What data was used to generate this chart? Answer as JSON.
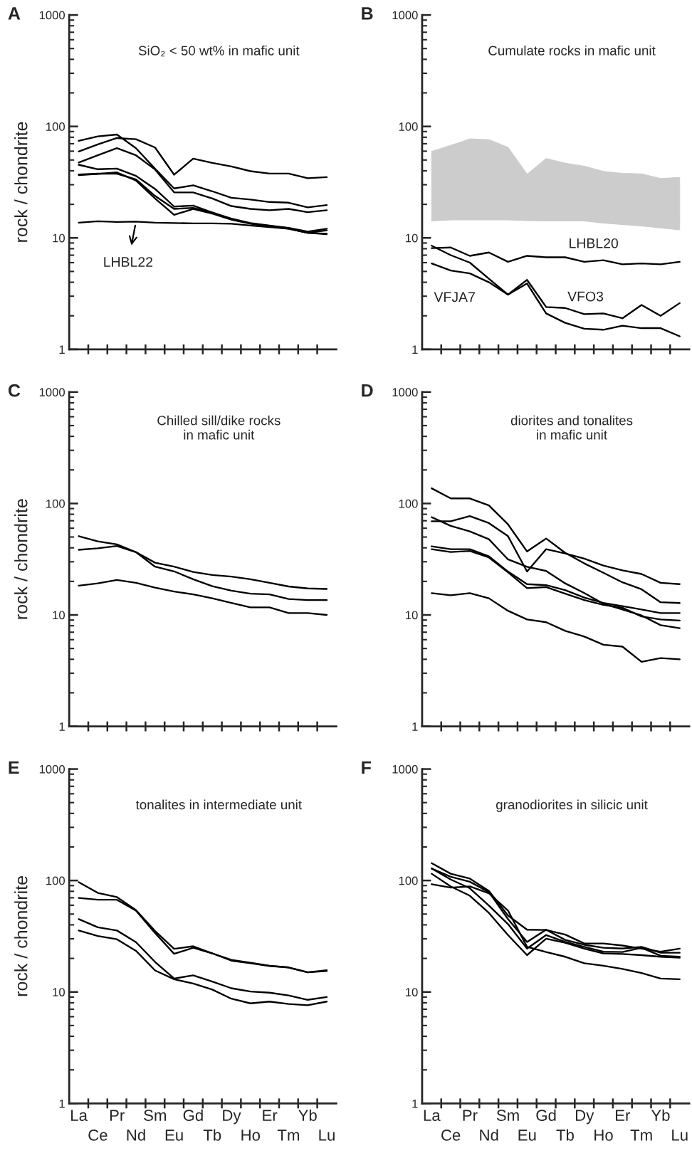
{
  "chart_data": [
    {
      "type": "line",
      "title": "A",
      "subtitle": "SiO₂ < 50 wt% in mafic unit",
      "ylabel": "rock / chondrite",
      "log": true,
      "ylim": [
        1,
        1000
      ],
      "yticks": [
        1,
        10,
        100,
        1000
      ],
      "tick_labels": "y",
      "categories": [
        null,
        null,
        null,
        null,
        null,
        null,
        null,
        null,
        null,
        null,
        null,
        null,
        null,
        null
      ],
      "series": [
        {
          "color": "#000000",
          "values": [
            59.6,
            69,
            78.7,
            76.8,
            64.7,
            36.9,
            51.4,
            47.1,
            43.8,
            39.7,
            37.8,
            37.8,
            34.3,
            35.1
          ]
        },
        {
          "color": "#000000",
          "values": [
            74.2,
            81.5,
            84.7,
            63.8,
            41.7,
            27.8,
            29.6,
            26.2,
            22.9,
            22.1,
            21.0,
            20.7,
            18.8,
            19.7
          ]
        },
        {
          "color": "#000000",
          "values": [
            47.5,
            55.1,
            63.8,
            55.1,
            41.1,
            25.6,
            25.6,
            22.6,
            19.3,
            18.2,
            17.7,
            18.2,
            17.0,
            17.7
          ]
        },
        {
          "color": "#000000",
          "values": [
            45.3,
            41.3,
            41.9,
            36.0,
            27.5,
            19.1,
            19.5,
            16.9,
            14.9,
            13.6,
            12.9,
            12.3,
            11.4,
            12.1
          ]
        },
        {
          "color": "#000000",
          "values": [
            36.6,
            37.5,
            38.7,
            32.7,
            22.6,
            16.1,
            18.2,
            16.5,
            14.6,
            13.4,
            12.7,
            12.1,
            11.1,
            10.9
          ]
        },
        {
          "color": "#000000",
          "values": [
            37.0,
            37.7,
            37.7,
            33.5,
            23.8,
            18.2,
            18.6,
            16.9,
            14.7,
            13.5,
            12.8,
            12.2,
            11.1,
            11.7
          ]
        },
        {
          "name": "LHBL22",
          "color": "#000000",
          "values": [
            13.7,
            14.1,
            13.9,
            14.0,
            13.7,
            13.6,
            13.5,
            13.5,
            13.4,
            12.9,
            12.5,
            12.1,
            11.1,
            10.8
          ]
        }
      ]
    },
    {
      "type": "line",
      "title": "B",
      "subtitle": "Cumulate rocks in mafic unit",
      "log": true,
      "ylim": [
        1,
        1000
      ],
      "yticks": [
        1,
        10,
        100,
        1000
      ],
      "tick_labels": "y",
      "categories": [
        null,
        null,
        null,
        null,
        null,
        null,
        null,
        null,
        null,
        null,
        null,
        null,
        null,
        null
      ],
      "series": [
        {
          "type": "area",
          "color": "#cccccc",
          "values": [
            null,
            null,
            null,
            null,
            null,
            null,
            null,
            null,
            null,
            null,
            null,
            null,
            null,
            null
          ],
          "upper": [
            59.7,
            67.5,
            77.3,
            76.1,
            64.9,
            37.2,
            51.5,
            46.8,
            43.9,
            39.5,
            37.9,
            37.6,
            34.1,
            34.9
          ],
          "lower": [
            14.2,
            14.5,
            14.5,
            14.5,
            14.5,
            14.3,
            14.2,
            14.2,
            14.2,
            13.6,
            13.2,
            12.8,
            12.3,
            11.8
          ]
        },
        {
          "name": "LHBL20",
          "color": "#000000",
          "values": [
            8.1,
            8.2,
            6.9,
            7.4,
            6.1,
            6.9,
            6.7,
            6.7,
            6.1,
            6.3,
            5.8,
            5.9,
            5.8,
            6.1
          ]
        },
        {
          "name": "VFO3",
          "color": "#000000",
          "values": [
            8.5,
            7.0,
            6.0,
            4.3,
            3.1,
            4.2,
            2.4,
            2.35,
            2.07,
            2.1,
            1.9,
            2.5,
            2.0,
            2.6
          ]
        },
        {
          "name": "VFJA7",
          "color": "#000000",
          "values": [
            5.9,
            5.1,
            4.8,
            4.0,
            3.1,
            3.9,
            2.1,
            1.73,
            1.53,
            1.5,
            1.63,
            1.55,
            1.55,
            1.31
          ]
        }
      ]
    },
    {
      "type": "line",
      "title": "C",
      "subtitle": "Chilled sill/dike rocks\nin mafic unit",
      "ylabel": "rock / chondrite",
      "log": true,
      "ylim": [
        1,
        1000
      ],
      "yticks": [
        1,
        10,
        100,
        1000
      ],
      "tick_labels": "y",
      "categories": [
        null,
        null,
        null,
        null,
        null,
        null,
        null,
        null,
        null,
        null,
        null,
        null,
        null,
        null
      ],
      "series": [
        {
          "color": "#000000",
          "values": [
            50.9,
            45.7,
            43.0,
            36.6,
            27.1,
            24.6,
            20.9,
            18.1,
            16.5,
            15.5,
            15.3,
            13.9,
            13.6,
            13.6
          ]
        },
        {
          "color": "#000000",
          "values": [
            38.4,
            39.6,
            41.6,
            36.6,
            29.4,
            27.1,
            24.3,
            22.8,
            22.1,
            20.9,
            19.4,
            18.0,
            17.3,
            17.1
          ]
        },
        {
          "color": "#000000",
          "values": [
            18.3,
            19.2,
            20.6,
            19.4,
            17.6,
            16.2,
            15.3,
            14.1,
            12.8,
            11.7,
            11.7,
            10.4,
            10.4,
            10.0
          ]
        }
      ]
    },
    {
      "type": "line",
      "title": "D",
      "subtitle": "diorites and tonalites\nin mafic unit",
      "log": true,
      "ylim": [
        1,
        1000
      ],
      "yticks": [
        1,
        10,
        100,
        1000
      ],
      "tick_labels": "y",
      "categories": [
        null,
        null,
        null,
        null,
        null,
        null,
        null,
        null,
        null,
        null,
        null,
        null,
        null,
        null
      ],
      "series": [
        {
          "color": "#000000",
          "values": [
            136.8,
            111,
            111,
            96,
            65,
            37.1,
            48.5,
            36.1,
            29.0,
            23.9,
            19.6,
            17.0,
            13.0,
            12.8
          ]
        },
        {
          "color": "#000000",
          "values": [
            69.3,
            69.3,
            77.1,
            66.7,
            50.9,
            24.5,
            38.9,
            35.6,
            32.0,
            27.7,
            25.1,
            23.3,
            19.4,
            18.9
          ]
        },
        {
          "color": "#000000",
          "values": [
            75.4,
            62.9,
            56.2,
            47.8,
            31.5,
            27.0,
            24.8,
            19.2,
            15.7,
            12.6,
            11.2,
            9.9,
            8.1,
            7.6
          ]
        },
        {
          "color": "#000000",
          "values": [
            41.3,
            38.9,
            38.9,
            33.6,
            24.5,
            18.9,
            18.5,
            16.7,
            14.3,
            12.8,
            12.0,
            11.2,
            10.4,
            10.4
          ]
        },
        {
          "color": "#000000",
          "values": [
            38.9,
            36.7,
            37.5,
            32.8,
            24.1,
            17.4,
            17.8,
            15.5,
            13.6,
            12.3,
            11.6,
            9.7,
            9.1,
            8.9
          ]
        },
        {
          "color": "#000000",
          "values": [
            15.7,
            15.0,
            15.7,
            14.1,
            10.9,
            9.1,
            8.6,
            7.2,
            6.4,
            5.4,
            5.2,
            3.8,
            4.1,
            4.0
          ]
        }
      ]
    },
    {
      "type": "line",
      "title": "E",
      "subtitle": "tonalites in intermediate unit",
      "ylabel": "rock / chondrite",
      "log": true,
      "ylim": [
        1,
        1000
      ],
      "yticks": [
        1,
        10,
        100,
        1000
      ],
      "categories": [
        "La",
        "Ce",
        "Pr",
        "Nd",
        "Sm",
        "Eu",
        "Gd",
        "Tb",
        "Dy",
        "Ho",
        "Er",
        "Tm",
        "Yb",
        "Lu"
      ],
      "series": [
        {
          "color": "#000000",
          "values": [
            96.6,
            77.4,
            71.0,
            54.3,
            35.2,
            24.4,
            25.7,
            22.2,
            19.1,
            18.1,
            17.1,
            16.6,
            15.0,
            15.7
          ]
        },
        {
          "color": "#000000",
          "values": [
            69.7,
            67.2,
            67.2,
            53.7,
            33.8,
            22.0,
            24.9,
            22.2,
            19.4,
            18.3,
            17.2,
            16.6,
            15.0,
            15.4
          ]
        },
        {
          "color": "#000000",
          "values": [
            45.0,
            38.0,
            35.6,
            28.0,
            18.6,
            13.2,
            14.1,
            12.4,
            10.8,
            10.1,
            9.85,
            9.3,
            8.5,
            9.0
          ]
        },
        {
          "color": "#000000",
          "values": [
            35.6,
            31.8,
            29.7,
            23.4,
            15.6,
            13.0,
            11.9,
            10.5,
            8.7,
            7.9,
            8.2,
            7.8,
            7.6,
            8.2
          ]
        }
      ]
    },
    {
      "type": "line",
      "title": "F",
      "subtitle": "granodiorites in silicic unit",
      "log": true,
      "ylim": [
        1,
        1000
      ],
      "yticks": [
        1,
        10,
        100,
        1000
      ],
      "categories": [
        "La",
        "Ce",
        "Pr",
        "Nd",
        "Sm",
        "Eu",
        "Gd",
        "Tb",
        "Dy",
        "Ho",
        "Er",
        "Tm",
        "Yb",
        "Lu"
      ],
      "series": [
        {
          "color": "#000000",
          "values": [
            143,
            115,
            104,
            80.8,
            48.6,
            36.2,
            36.0,
            32.7,
            27.2,
            27.2,
            26.1,
            24.5,
            23.0,
            24.5
          ]
        },
        {
          "color": "#000000",
          "values": [
            128,
            108,
            97.5,
            78.8,
            45.1,
            28.1,
            36.2,
            29.3,
            26.5,
            24.9,
            24.5,
            25.4,
            22.5,
            22.5
          ]
        },
        {
          "color": "#000000",
          "values": [
            128,
            102,
            85.2,
            59.6,
            40.7,
            24.5,
            32.4,
            28.1,
            25.4,
            23.0,
            22.8,
            24.9,
            21.1,
            20.7
          ]
        },
        {
          "color": "#000000",
          "values": [
            115,
            88.5,
            73.0,
            51.2,
            32.4,
            21.4,
            30.1,
            27.6,
            24.5,
            22.2,
            21.9,
            21.4,
            20.7,
            20.3
          ]
        },
        {
          "color": "#000000",
          "values": [
            92.7,
            86.3,
            88.5,
            76.7,
            53.8,
            25.4,
            22.8,
            20.7,
            18.1,
            17.2,
            16.1,
            14.8,
            13.2,
            13.0
          ]
        }
      ]
    }
  ]
}
